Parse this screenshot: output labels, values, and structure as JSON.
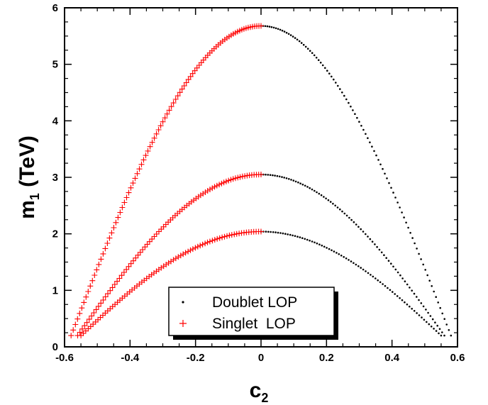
{
  "chart_data": {
    "type": "scatter",
    "xlabel": "c",
    "xlabel_sub": "2",
    "ylabel": "m",
    "ylabel_sub": "1",
    "ylabel_unit": " (TeV)",
    "xlim": [
      -0.6,
      0.6
    ],
    "ylim": [
      0,
      6
    ],
    "x_ticks": [
      -0.6,
      -0.4,
      -0.2,
      0,
      0.2,
      0.4,
      0.6
    ],
    "x_tick_labels": [
      "-0.6",
      "-0.4",
      "-0.2",
      "0",
      "0.2",
      "0.4",
      "0.6"
    ],
    "y_ticks": [
      0,
      1,
      2,
      3,
      4,
      5,
      6
    ],
    "y_tick_labels": [
      "0",
      "1",
      "2",
      "3",
      "4",
      "5",
      "6"
    ],
    "grid": false,
    "legend_position": "bottom-center",
    "series": [
      {
        "name": "Doublet LOP",
        "marker": "dot",
        "color": "#000000",
        "curves": [
          {
            "peak": 5.68,
            "x_start": 0.0,
            "x_end": 0.58,
            "y_end": 0.2,
            "n": 90
          },
          {
            "peak": 3.05,
            "x_start": 0.0,
            "x_end": 0.56,
            "y_end": 0.2,
            "n": 80
          },
          {
            "peak": 2.04,
            "x_start": 0.0,
            "x_end": 0.55,
            "y_end": 0.2,
            "n": 75
          }
        ]
      },
      {
        "name": "Singlet  LOP",
        "marker": "plus",
        "color": "#ff0000",
        "curves": [
          {
            "peak": 5.68,
            "x_start": -0.58,
            "x_end": 0.0,
            "y_start": 0.2,
            "n": 90
          },
          {
            "peak": 3.05,
            "x_start": -0.56,
            "x_end": 0.0,
            "y_start": 0.2,
            "n": 80
          },
          {
            "peak": 2.04,
            "x_start": -0.55,
            "x_end": 0.0,
            "y_start": 0.2,
            "n": 75
          }
        ]
      }
    ]
  }
}
